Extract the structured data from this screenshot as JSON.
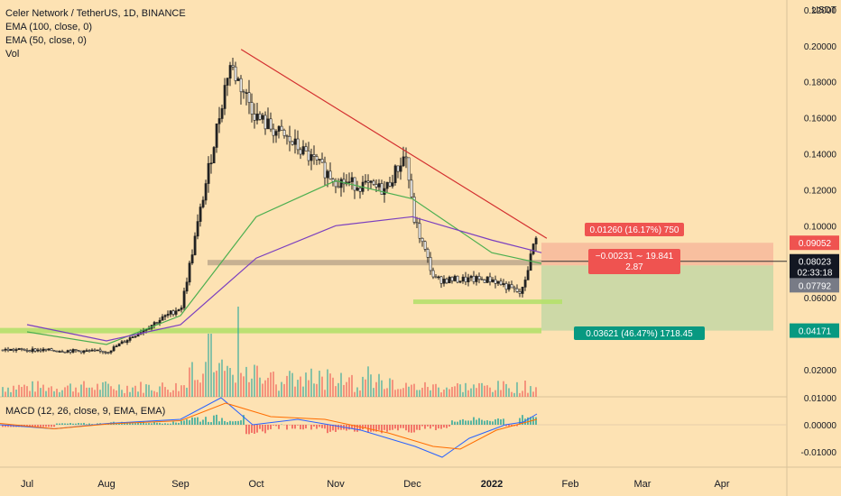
{
  "legend": {
    "title": "Celer Network / TetherUS, 1D, BINANCE",
    "ema100": "EMA (100, close, 0)",
    "ema50": "EMA (50, close, 0)",
    "vol": "Vol",
    "macd": "MACD (12, 26, close, 9, EMA, EMA)"
  },
  "axis": {
    "currency": "USDT",
    "price_ticks": [
      "0.22000",
      "0.20000",
      "0.18000",
      "0.16000",
      "0.14000",
      "0.12000",
      "0.10000",
      "0.06000",
      "0.02000"
    ],
    "macd_ticks": [
      "0.01000",
      "0.00000",
      "-0.01000"
    ],
    "months": [
      "Jul",
      "Aug",
      "Sep",
      "Oct",
      "Nov",
      "Dec",
      "2022",
      "Feb",
      "Mar",
      "Apr"
    ]
  },
  "price_tags": {
    "target": "0.09052",
    "current": "0.08023",
    "countdown": "02:33:18",
    "entry": "0.07792",
    "stop": "0.04171"
  },
  "position": {
    "top_label": "0.01260 (16.17%) 750",
    "mid_label_1": "−0.00231 ∼ 19.841",
    "mid_label_2": "2.87",
    "bottom_label": "0.03621 (46.47%) 1718.45"
  },
  "colors": {
    "background": "#fde2b3",
    "up": "#26a69a",
    "down": "#ef5350",
    "ema50": "#4caf50",
    "ema100": "#7b3fbf",
    "trendline": "#d32f2f",
    "support": "#b5e06b",
    "resistance": "#b9a58a",
    "target_zone": "#f7b89b",
    "stop_zone": "#c8d8a5"
  },
  "chart_data": {
    "type": "candlestick",
    "title": "Celer Network / TetherUS, 1D, BINANCE",
    "y_unit": "USDT",
    "x_range": [
      "Jul",
      "Apr"
    ],
    "ylim": [
      0.005,
      0.22
    ],
    "close_series_approx": [
      {
        "x": "Jul",
        "y": 0.031
      },
      {
        "x": "Aug",
        "y": 0.03
      },
      {
        "x": "Sep",
        "y": 0.055
      },
      {
        "x": "Sep-20",
        "y": 0.19
      },
      {
        "x": "Oct",
        "y": 0.16
      },
      {
        "x": "Oct-15",
        "y": 0.145
      },
      {
        "x": "Nov",
        "y": 0.125
      },
      {
        "x": "Nov-20",
        "y": 0.12
      },
      {
        "x": "Nov-28",
        "y": 0.14
      },
      {
        "x": "Dec",
        "y": 0.105
      },
      {
        "x": "Dec-05",
        "y": 0.07
      },
      {
        "x": "2022",
        "y": 0.07
      },
      {
        "x": "Jan-12",
        "y": 0.062
      },
      {
        "x": "Jan-18",
        "y": 0.098
      },
      {
        "x": "Jan-20",
        "y": 0.08023
      }
    ],
    "ema50_approx": [
      {
        "x": "Jul",
        "y": 0.041
      },
      {
        "x": "Aug",
        "y": 0.034
      },
      {
        "x": "Sep",
        "y": 0.05
      },
      {
        "x": "Oct",
        "y": 0.105
      },
      {
        "x": "Nov",
        "y": 0.125
      },
      {
        "x": "Dec",
        "y": 0.115
      },
      {
        "x": "2022",
        "y": 0.085
      },
      {
        "x": "Jan-20",
        "y": 0.079
      }
    ],
    "ema100_approx": [
      {
        "x": "Jul",
        "y": 0.045
      },
      {
        "x": "Aug",
        "y": 0.036
      },
      {
        "x": "Sep",
        "y": 0.045
      },
      {
        "x": "Oct",
        "y": 0.082
      },
      {
        "x": "Nov",
        "y": 0.1
      },
      {
        "x": "Dec",
        "y": 0.105
      },
      {
        "x": "2022",
        "y": 0.092
      },
      {
        "x": "Jan-20",
        "y": 0.085
      }
    ],
    "trendline": [
      {
        "x": "Sep-25",
        "y": 0.198
      },
      {
        "x": "Jan-22",
        "y": 0.093
      }
    ],
    "levels": {
      "support_low": 0.058,
      "support_mid": 0.0417,
      "resistance": 0.0795
    },
    "position": {
      "entry": 0.07792,
      "target": 0.09052,
      "stop": 0.04171,
      "current": 0.08023
    }
  }
}
